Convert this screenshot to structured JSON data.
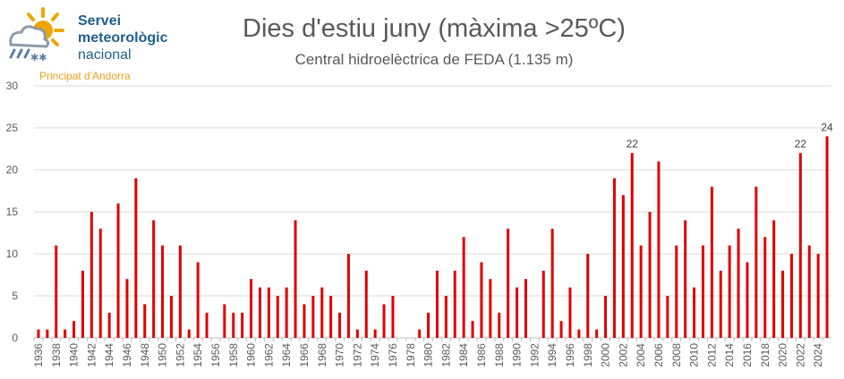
{
  "brand": {
    "name_line1": "Servei",
    "name_line2": "meteorològic",
    "name_line3": "nacional",
    "sub": "Principat d'Andorra"
  },
  "colors": {
    "bar": "#e00000",
    "grid": "#d9d9d9",
    "text": "#595959",
    "sun": "#f0a500",
    "cloud": "#8a9aa8"
  },
  "chart_data": {
    "type": "bar",
    "title": "Dies d'estiu juny (màxima >25ºC)",
    "subtitle": "Central hidroelèctrica de FEDA (1.135 m)",
    "xlabel": "",
    "ylabel": "",
    "ylim": [
      0,
      30
    ],
    "yticks": [
      0,
      5,
      10,
      15,
      20,
      25,
      30
    ],
    "grid": true,
    "categories": [
      1936,
      1937,
      1938,
      1939,
      1940,
      1941,
      1942,
      1943,
      1944,
      1945,
      1946,
      1947,
      1948,
      1949,
      1950,
      1951,
      1952,
      1953,
      1954,
      1955,
      1956,
      1957,
      1958,
      1959,
      1960,
      1961,
      1962,
      1963,
      1964,
      1965,
      1966,
      1967,
      1968,
      1969,
      1970,
      1971,
      1972,
      1973,
      1974,
      1975,
      1976,
      1977,
      1978,
      1979,
      1980,
      1981,
      1982,
      1983,
      1984,
      1985,
      1986,
      1987,
      1988,
      1989,
      1990,
      1991,
      1992,
      1993,
      1994,
      1995,
      1996,
      1997,
      1998,
      1999,
      2000,
      2001,
      2002,
      2003,
      2004,
      2005,
      2006,
      2007,
      2008,
      2009,
      2010,
      2011,
      2012,
      2013,
      2014,
      2015,
      2016,
      2017,
      2018,
      2019,
      2020,
      2021,
      2022,
      2023,
      2024,
      2025
    ],
    "values": [
      1,
      1,
      11,
      1,
      2,
      8,
      15,
      13,
      3,
      16,
      7,
      19,
      4,
      14,
      11,
      5,
      11,
      1,
      9,
      3,
      0,
      4,
      3,
      3,
      7,
      6,
      6,
      5,
      6,
      14,
      4,
      5,
      6,
      5,
      3,
      10,
      1,
      8,
      1,
      4,
      5,
      0,
      0,
      1,
      3,
      8,
      5,
      8,
      12,
      2,
      9,
      7,
      3,
      13,
      6,
      7,
      0,
      8,
      13,
      2,
      6,
      1,
      10,
      1,
      5,
      19,
      17,
      22,
      11,
      15,
      21,
      5,
      11,
      14,
      6,
      11,
      18,
      8,
      11,
      13,
      9,
      18,
      12,
      14,
      8,
      10,
      22,
      11,
      10,
      24
    ],
    "data_labels": [
      {
        "x": 2003,
        "value": "22"
      },
      {
        "x": 2022,
        "value": "22"
      },
      {
        "x": 2025,
        "value": "24"
      }
    ]
  }
}
